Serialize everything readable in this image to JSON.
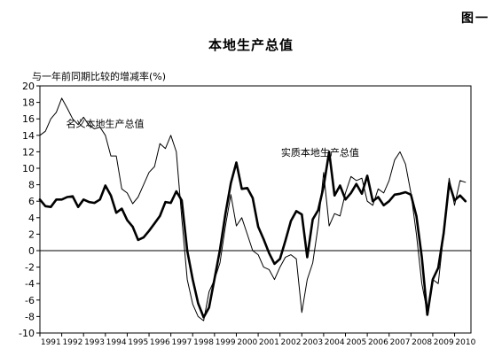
{
  "figure_label": "图一",
  "chart_data": {
    "type": "line",
    "title": "本地生产总值",
    "ylabel": "与一年前同期比较的增减率(%)",
    "xlabel": "",
    "ylim": [
      -10,
      20
    ],
    "ytick_step": 2,
    "yticks": [
      "-10",
      "-8",
      "-6",
      "-4",
      "-2",
      "0",
      "2",
      "4",
      "6",
      "8",
      "10",
      "12",
      "14",
      "16",
      "18",
      "20"
    ],
    "xlim": [
      1991.0,
      2010.75
    ],
    "xticks": [
      "1991",
      "1992",
      "1993",
      "1994",
      "1995",
      "1996",
      "1997",
      "1998",
      "1999",
      "2000",
      "2001",
      "2002",
      "2003",
      "2004",
      "2005",
      "2006",
      "2007",
      "2008",
      "2009",
      "2010"
    ],
    "series": [
      {
        "name": "名义本地生产总值",
        "label_text": "名义本地生产总值",
        "color": "#000000",
        "stroke": "thin",
        "label_anchor": {
          "x": 1992.2,
          "y": 15.0
        },
        "x": [
          1991.0,
          1991.25,
          1991.5,
          1991.75,
          1992.0,
          1992.25,
          1992.5,
          1992.75,
          1993.0,
          1993.25,
          1993.5,
          1993.75,
          1994.0,
          1994.25,
          1994.5,
          1994.75,
          1995.0,
          1995.25,
          1995.5,
          1995.75,
          1996.0,
          1996.25,
          1996.5,
          1996.75,
          1997.0,
          1997.25,
          1997.5,
          1997.75,
          1998.0,
          1998.25,
          1998.5,
          1998.75,
          1999.0,
          1999.25,
          1999.5,
          1999.75,
          2000.0,
          2000.25,
          2000.5,
          2000.75,
          2001.0,
          2001.25,
          2001.5,
          2001.75,
          2002.0,
          2002.25,
          2002.5,
          2002.75,
          2003.0,
          2003.25,
          2003.5,
          2003.75,
          2004.0,
          2004.25,
          2004.5,
          2004.75,
          2005.0,
          2005.25,
          2005.5,
          2005.75,
          2006.0,
          2006.25,
          2006.5,
          2006.75,
          2007.0,
          2007.25,
          2007.5,
          2007.75,
          2008.0,
          2008.25,
          2008.5,
          2008.75,
          2009.0,
          2009.25,
          2009.5,
          2009.75,
          2010.0,
          2010.25,
          2010.5
        ],
        "values": [
          14.0,
          14.5,
          16.0,
          16.8,
          18.5,
          17.3,
          16.0,
          15.3,
          16.2,
          15.2,
          14.8,
          15.0,
          14.0,
          11.5,
          11.5,
          7.5,
          7.0,
          5.7,
          6.5,
          8.0,
          9.5,
          10.2,
          13.0,
          12.4,
          14.0,
          12.0,
          4.0,
          -3.5,
          -6.5,
          -8.0,
          -8.5,
          -5.0,
          -3.5,
          -1.5,
          3.0,
          6.8,
          3.0,
          4.0,
          2.0,
          0.0,
          -0.5,
          -2.0,
          -2.3,
          -3.5,
          -2.0,
          -0.8,
          -0.5,
          -1.0,
          -7.5,
          -3.5,
          -1.5,
          3.0,
          9.5,
          3.0,
          4.5,
          4.2,
          7.0,
          9.0,
          8.5,
          8.8,
          6.0,
          5.5,
          7.5,
          7.0,
          8.5,
          11.0,
          12.0,
          10.5,
          7.0,
          2.0,
          -4.0,
          -7.5,
          -3.5,
          -4.0,
          2.0,
          8.8,
          5.5,
          8.5,
          8.3
        ]
      },
      {
        "name": "实质本地生产总值",
        "label_text": "实质本地生产总值",
        "color": "#000000",
        "stroke": "thick",
        "label_anchor": {
          "x": 2002.05,
          "y": 11.5
        },
        "x": [
          1991.0,
          1991.25,
          1991.5,
          1991.75,
          1992.0,
          1992.25,
          1992.5,
          1992.75,
          1993.0,
          1993.25,
          1993.5,
          1993.75,
          1994.0,
          1994.25,
          1994.5,
          1994.75,
          1995.0,
          1995.25,
          1995.5,
          1995.75,
          1996.0,
          1996.25,
          1996.5,
          1996.75,
          1997.0,
          1997.25,
          1997.5,
          1997.75,
          1998.0,
          1998.25,
          1998.5,
          1998.75,
          1999.0,
          1999.25,
          1999.5,
          1999.75,
          2000.0,
          2000.25,
          2000.5,
          2000.75,
          2001.0,
          2001.25,
          2001.5,
          2001.75,
          2002.0,
          2002.25,
          2002.5,
          2002.75,
          2003.0,
          2003.25,
          2003.5,
          2003.75,
          2004.0,
          2004.25,
          2004.5,
          2004.75,
          2005.0,
          2005.25,
          2005.5,
          2005.75,
          2006.0,
          2006.25,
          2006.5,
          2006.75,
          2007.0,
          2007.25,
          2007.5,
          2007.75,
          2008.0,
          2008.25,
          2008.5,
          2008.75,
          2009.0,
          2009.25,
          2009.5,
          2009.75,
          2010.0,
          2010.25,
          2010.5
        ],
        "values": [
          6.2,
          5.4,
          5.3,
          6.2,
          6.2,
          6.5,
          6.6,
          5.3,
          6.2,
          5.9,
          5.8,
          6.2,
          7.9,
          6.7,
          4.6,
          5.1,
          3.7,
          2.9,
          1.3,
          1.6,
          2.4,
          3.3,
          4.2,
          5.9,
          5.8,
          7.2,
          6.1,
          0.0,
          -3.5,
          -6.4,
          -8.1,
          -6.9,
          -3.4,
          0.1,
          4.5,
          8.2,
          10.7,
          7.5,
          7.6,
          6.4,
          2.9,
          1.4,
          -0.3,
          -1.6,
          -1.0,
          1.2,
          3.6,
          4.8,
          4.4,
          -0.8,
          3.8,
          4.9,
          7.8,
          12.0,
          6.7,
          7.9,
          6.2,
          7.0,
          8.1,
          6.9,
          9.1,
          6.0,
          6.5,
          5.5,
          6.0,
          6.8,
          6.9,
          7.1,
          6.8,
          4.2,
          -0.8,
          -7.8,
          -3.5,
          -2.1,
          2.1,
          8.2,
          6.1,
          6.7,
          6.0
        ]
      }
    ]
  }
}
